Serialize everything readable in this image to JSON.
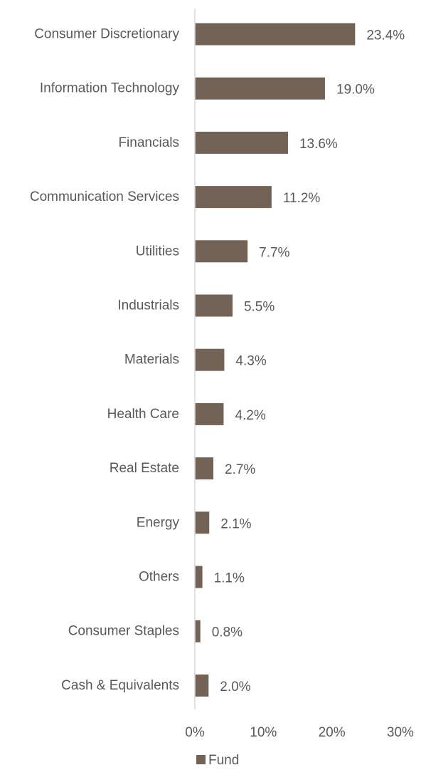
{
  "chart_data": {
    "type": "bar",
    "orientation": "horizontal",
    "categories": [
      "Consumer Discretionary",
      "Information Technology",
      "Financials",
      "Communication Services",
      "Utilities",
      "Industrials",
      "Materials",
      "Health Care",
      "Real Estate",
      "Energy",
      "Others",
      "Consumer Staples",
      "Cash & Equivalents"
    ],
    "series": [
      {
        "name": "Fund",
        "values": [
          23.4,
          19.0,
          13.6,
          11.2,
          7.7,
          5.5,
          4.3,
          4.2,
          2.7,
          2.1,
          1.1,
          0.8,
          2.0
        ],
        "value_labels": [
          "23.4%",
          "19.0%",
          "13.6%",
          "11.2%",
          "7.7%",
          "5.5%",
          "4.3%",
          "4.2%",
          "2.7%",
          "2.1%",
          "1.1%",
          "0.8%",
          "2.0%"
        ],
        "color": "#736357"
      }
    ],
    "xlim": [
      0,
      30
    ],
    "x_ticks": [
      0,
      10,
      20,
      30
    ],
    "x_tick_labels": [
      "0%",
      "10%",
      "20%",
      "30%"
    ],
    "grid": false,
    "legend_position": "bottom",
    "title": "",
    "xlabel": "",
    "ylabel": ""
  }
}
